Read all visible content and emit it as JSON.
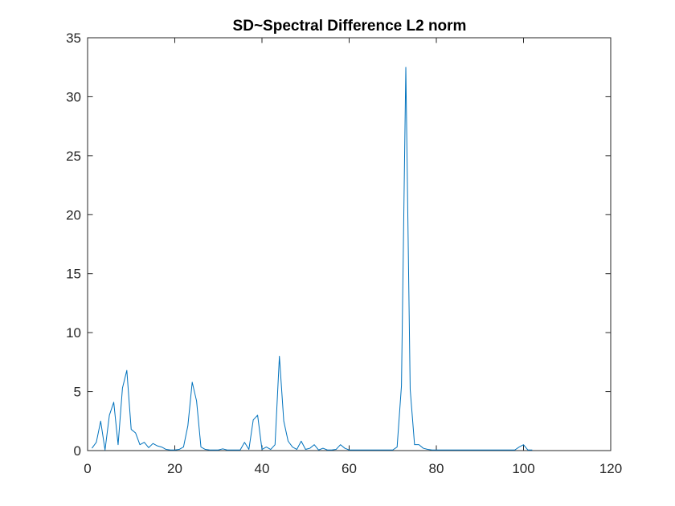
{
  "chart_data": {
    "type": "line",
    "title": "SD~Spectral  Difference L2 norm",
    "xlabel": "",
    "ylabel": "",
    "xlim": [
      0,
      120
    ],
    "ylim": [
      0,
      35
    ],
    "xticks": [
      0,
      20,
      40,
      60,
      80,
      100,
      120
    ],
    "yticks": [
      0,
      5,
      10,
      15,
      20,
      25,
      30,
      35
    ],
    "grid": false,
    "line_color": "#0072BD",
    "series": [
      {
        "x": [
          1,
          2,
          3,
          4,
          5,
          6,
          7,
          8,
          9,
          10,
          11,
          12,
          13,
          14,
          15,
          16,
          17,
          18,
          19,
          20,
          21,
          22,
          23,
          24,
          25,
          26,
          27,
          28,
          29,
          30,
          31,
          32,
          33,
          34,
          35,
          36,
          37,
          38,
          39,
          40,
          41,
          42,
          43,
          44,
          45,
          46,
          47,
          48,
          49,
          50,
          51,
          52,
          53,
          54,
          55,
          56,
          57,
          58,
          59,
          60,
          61,
          62,
          63,
          64,
          65,
          66,
          67,
          68,
          69,
          70,
          71,
          72,
          73,
          74,
          75,
          76,
          77,
          78,
          79,
          80,
          81,
          82,
          83,
          84,
          85,
          86,
          87,
          88,
          89,
          90,
          91,
          92,
          93,
          94,
          95,
          96,
          97,
          98,
          99,
          100,
          101,
          102
        ],
        "values": [
          0.2,
          0.7,
          2.5,
          0.05,
          3.0,
          4.1,
          0.5,
          5.3,
          6.8,
          1.8,
          1.5,
          0.5,
          0.7,
          0.25,
          0.6,
          0.4,
          0.3,
          0.1,
          0.05,
          0.05,
          0.1,
          0.3,
          2.1,
          5.8,
          4.2,
          0.3,
          0.1,
          0.05,
          0.05,
          0.05,
          0.15,
          0.05,
          0.05,
          0.05,
          0.05,
          0.7,
          0.1,
          2.6,
          3.0,
          0.1,
          0.3,
          0.1,
          0.5,
          8.0,
          2.5,
          0.8,
          0.3,
          0.1,
          0.8,
          0.1,
          0.2,
          0.5,
          0.05,
          0.2,
          0.05,
          0.05,
          0.1,
          0.5,
          0.2,
          0.05,
          0.05,
          0.05,
          0.05,
          0.05,
          0.05,
          0.05,
          0.05,
          0.05,
          0.05,
          0.05,
          0.3,
          5.5,
          32.5,
          5.2,
          0.5,
          0.5,
          0.2,
          0.1,
          0.05,
          0.05,
          0.05,
          0.05,
          0.05,
          0.05,
          0.05,
          0.05,
          0.05,
          0.05,
          0.05,
          0.05,
          0.05,
          0.05,
          0.05,
          0.05,
          0.05,
          0.05,
          0.05,
          0.05,
          0.3,
          0.5,
          0.05,
          0.05
        ]
      }
    ]
  }
}
